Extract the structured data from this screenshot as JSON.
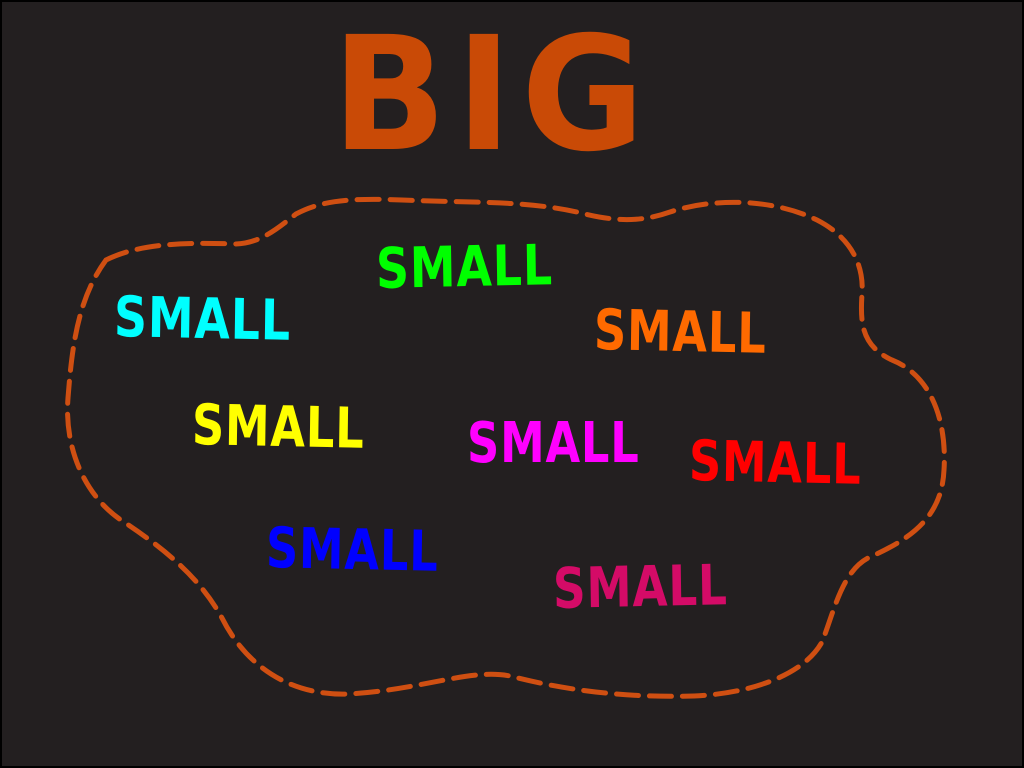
{
  "title": {
    "text": "BIG",
    "color": "#c94a06"
  },
  "outline": {
    "color": "#cf4f12",
    "style": "dashed"
  },
  "words": [
    {
      "text": "SMALL",
      "color": "#00ffff"
    },
    {
      "text": "SMALL",
      "color": "#00ff00"
    },
    {
      "text": "SMALL",
      "color": "#ff6a00"
    },
    {
      "text": "SMALL",
      "color": "#ffff00"
    },
    {
      "text": "SMALL",
      "color": "#ff00ff"
    },
    {
      "text": "SMALL",
      "color": "#ff0000"
    },
    {
      "text": "SMALL",
      "color": "#0000ff"
    },
    {
      "text": "SMALL",
      "color": "#d40b67"
    }
  ],
  "background_color": "#231f20"
}
